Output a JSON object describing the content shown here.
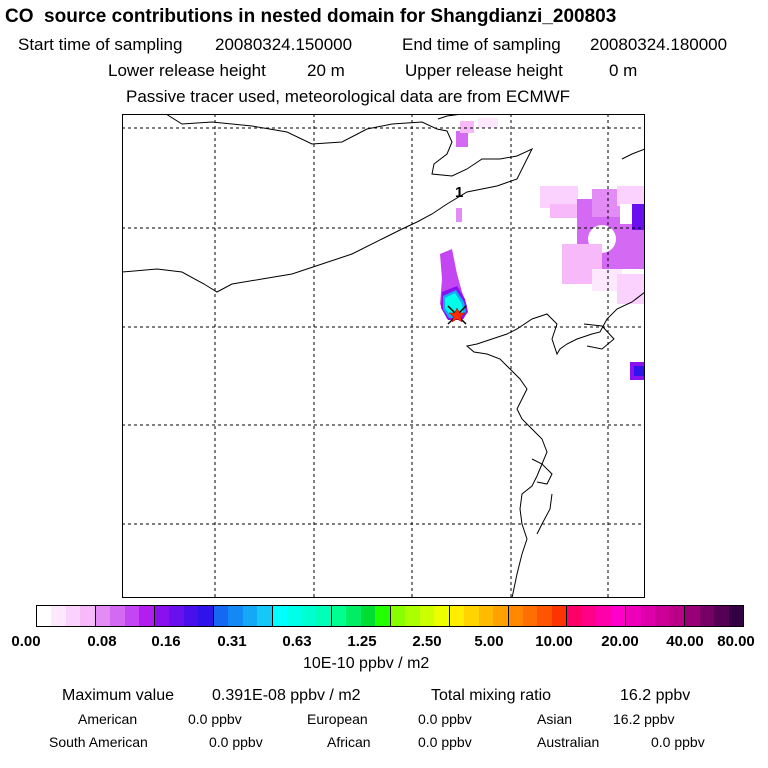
{
  "title": "CO  source contributions in nested domain for Shangdianzi_200803",
  "header": {
    "start_label": "Start time of sampling",
    "start_value": "20080324.150000",
    "end_label": "End time of sampling",
    "end_value": "20080324.180000",
    "lower_label": "Lower release height",
    "lower_value": "20 m",
    "upper_label": "Upper release height",
    "upper_value": "0 m",
    "tracer_note": "Passive tracer used, meteorological data are from ECMWF"
  },
  "map": {
    "label_1": "1",
    "colors": {
      "coast": "#000000",
      "grid": "#000000",
      "marker_x": "#000000",
      "marker_star": "#ff2a00"
    }
  },
  "colorbar": {
    "ticks": [
      "0.00",
      "0.08",
      "0.16",
      "0.31",
      "0.63",
      "1.25",
      "2.50",
      "5.00",
      "10.00",
      "20.00",
      "40.00",
      "80.00"
    ],
    "units": "10E-10 ppbv / m2",
    "colors": [
      "#ffffff",
      "#fde8fe",
      "#fbd2fd",
      "#f8b9fb",
      "#e48cf6",
      "#d46af4",
      "#c445f2",
      "#b21df0",
      "#8a10f0",
      "#6a10ee",
      "#4a10ec",
      "#2e14ea",
      "#1468f2",
      "#1488f4",
      "#14a8f6",
      "#14c8f8",
      "#00ffff",
      "#00ffe8",
      "#00ffd0",
      "#00ffb8",
      "#00ff90",
      "#00ee66",
      "#00dd33",
      "#22ff00",
      "#88ff00",
      "#aaff00",
      "#ccff00",
      "#eeff00",
      "#ffee00",
      "#ffd400",
      "#ffbb00",
      "#ffa200",
      "#ff8800",
      "#ff6e00",
      "#ff5500",
      "#ff3300",
      "#ff0066",
      "#ff0088",
      "#ff00aa",
      "#ff00cc",
      "#ee00bb",
      "#dd00aa",
      "#cc0099",
      "#bb0088",
      "#990077",
      "#770066",
      "#550055",
      "#330044"
    ]
  },
  "stats": {
    "max_label": "Maximum value",
    "max_value": "0.391E-08 ppbv / m2",
    "total_label": "Total mixing ratio",
    "total_value": "16.2 ppbv",
    "american_label": "American",
    "american_value": "0.0 ppbv",
    "european_label": "European",
    "european_value": "0.0 ppbv",
    "asian_label": "Asian",
    "asian_value": "16.2 ppbv",
    "south_american_label": "South American",
    "south_american_value": "0.0 ppbv",
    "african_label": "African",
    "african_value": "0.0 ppbv",
    "australian_label": "Australian",
    "australian_value": "0.0 ppbv"
  }
}
